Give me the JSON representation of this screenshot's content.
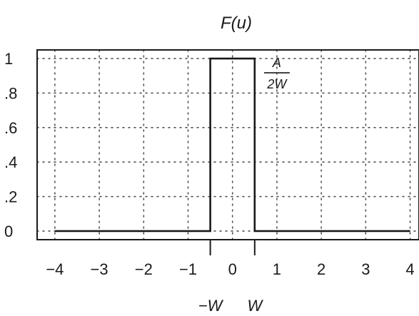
{
  "chart_data": {
    "type": "line",
    "title": "F(u)",
    "xlabel": "",
    "ylabel": "",
    "xlim": [
      -4.4,
      4.2
    ],
    "ylim": [
      -0.05,
      1.05
    ],
    "grid": true,
    "x_ticks": [
      -4,
      -3,
      -2,
      -1,
      0,
      1,
      2,
      3,
      4
    ],
    "x_tick_labels": [
      "−4",
      "−3",
      "−2",
      "−1",
      "0",
      "1",
      "2",
      "3",
      "4"
    ],
    "y_ticks": [
      0,
      0.2,
      0.4,
      0.6,
      0.8,
      1
    ],
    "y_tick_labels": [
      "0",
      ".2",
      ".4",
      ".6",
      ".8",
      "1"
    ],
    "series": [
      {
        "x": [
          -4,
          -0.5,
          -0.5,
          0.5,
          0.5,
          4
        ],
        "y": [
          0,
          0,
          1,
          1,
          0,
          0
        ]
      }
    ],
    "annotations": {
      "amplitude_numerator": "A",
      "amplitude_denominator": "2W",
      "amplitude_at": [
        0.55,
        1
      ],
      "edge_markers": [
        {
          "label": "−W",
          "x": -0.5
        },
        {
          "label": "W",
          "x": 0.5
        }
      ]
    }
  }
}
